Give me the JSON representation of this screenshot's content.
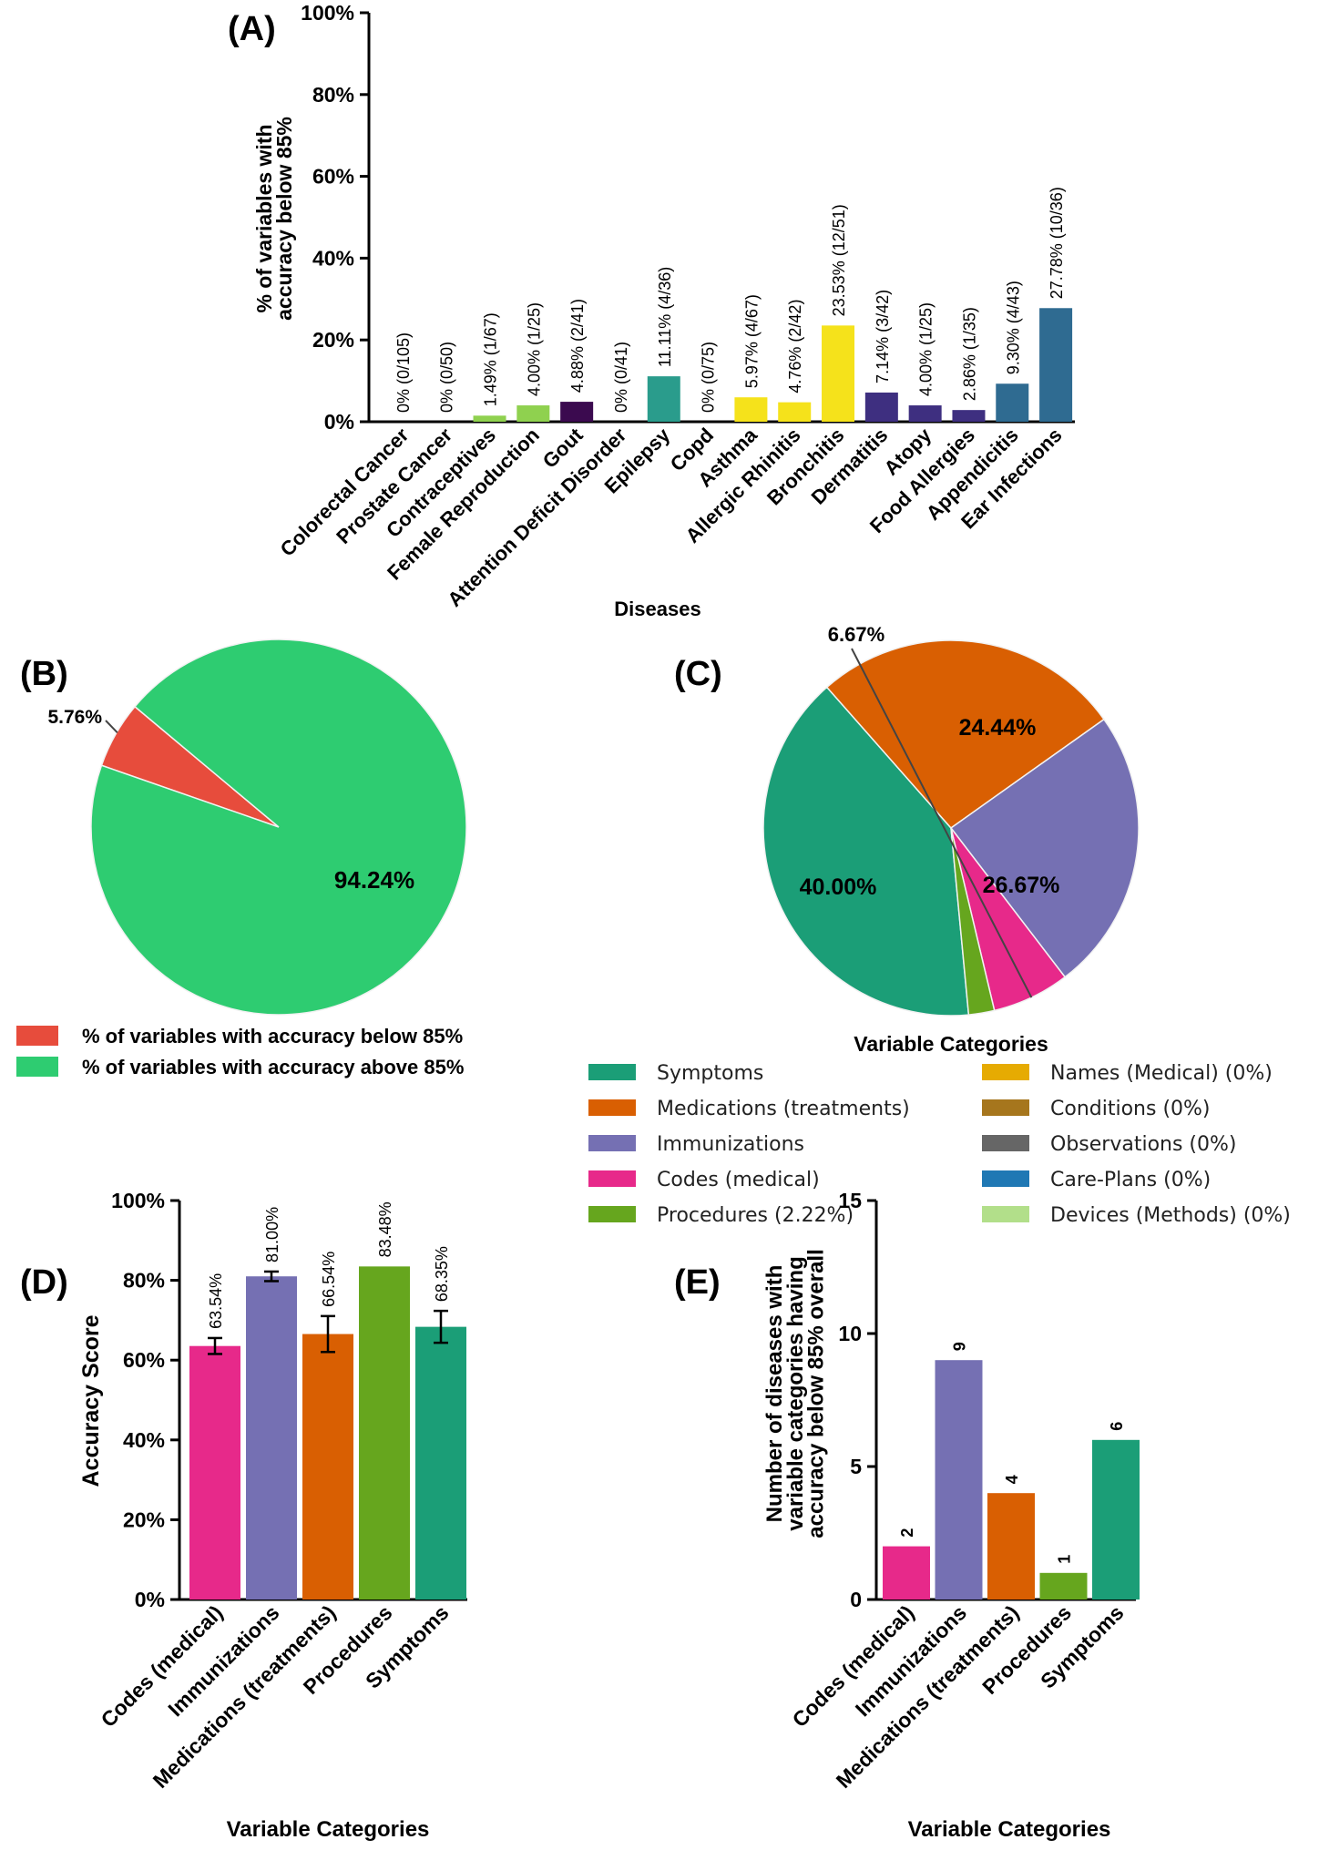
{
  "chart_data": [
    {
      "panel": "(A)",
      "type": "bar",
      "xlabel": "Diseases",
      "ylabel": [
        "% of variables with",
        "accuracy below 85%"
      ],
      "ylim": [
        0,
        100
      ],
      "yticks": [
        "0%",
        "20%",
        "40%",
        "60%",
        "80%",
        "100%"
      ],
      "categories": [
        "Colorectal Cancer",
        "Prostate Cancer",
        "Contraceptives",
        "Female Reproduction",
        "Gout",
        "Attention Deficit Disorder",
        "Epilepsy",
        "Copd",
        "Asthma",
        "Allergic Rhinitis",
        "Bronchitis",
        "Dermatitis",
        "Atopy",
        "Food Allergies",
        "Appendicitis",
        "Ear Infections"
      ],
      "values": [
        0,
        0,
        1.49,
        4.0,
        4.88,
        0,
        11.11,
        0,
        5.97,
        4.76,
        23.53,
        7.14,
        4.0,
        2.86,
        9.3,
        27.78
      ],
      "labels": [
        "0% (0/105)",
        "0% (0/50)",
        "1.49% (1/67)",
        "4.00% (1/25)",
        "4.88% (2/41)",
        "0% (0/41)",
        "11.11% (4/36)",
        "0% (0/75)",
        "5.97% (4/67)",
        "4.76% (2/42)",
        "23.53% (12/51)",
        "7.14% (3/42)",
        "4.00% (1/25)",
        "2.86% (1/35)",
        "9.30% (4/43)",
        "27.78% (10/36)"
      ],
      "colors": [
        "#ffffff",
        "#ffffff",
        "#8fd14f",
        "#8fd14f",
        "#3b0a4f",
        "#ffffff",
        "#2a9c8c",
        "#ffffff",
        "#f5e21b",
        "#f5e21b",
        "#f5e21b",
        "#3e2f80",
        "#3e2f80",
        "#3e2f80",
        "#2f6b91",
        "#2f6b91"
      ]
    },
    {
      "panel": "(B)",
      "type": "pie",
      "slices": [
        {
          "name": "% of variables with accuracy below 85%",
          "value": 5.76,
          "label": "5.76%",
          "color": "#e74c3c"
        },
        {
          "name": "% of variables with accuracy above 85%",
          "value": 94.24,
          "label": "94.24%",
          "color": "#2ecc71"
        }
      ],
      "legend_position": "bottom"
    },
    {
      "panel": "(C)",
      "type": "pie",
      "title": "Variable Categories",
      "slices": [
        {
          "name": "Symptoms",
          "value": 40.0,
          "label": "40.00%",
          "color": "#1b9e77"
        },
        {
          "name": "Medications (treatments)",
          "value": 26.67,
          "label": "26.67%",
          "color": "#d95f02"
        },
        {
          "name": "Immunizations",
          "value": 24.44,
          "label": "24.44%",
          "color": "#7570b3"
        },
        {
          "name": "Codes (medical)",
          "value": 6.67,
          "label": "6.67%",
          "color": "#e7298a"
        },
        {
          "name": "Procedures (2.22%)",
          "value": 2.22,
          "label": "",
          "color": "#66a61e"
        }
      ],
      "legend": [
        {
          "name": "Symptoms",
          "color": "#1b9e77"
        },
        {
          "name": "Medications (treatments)",
          "color": "#d95f02"
        },
        {
          "name": "Immunizations",
          "color": "#7570b3"
        },
        {
          "name": "Codes (medical)",
          "color": "#e7298a"
        },
        {
          "name": "Procedures (2.22%)",
          "color": "#66a61e"
        },
        {
          "name": "Names (Medical) (0%)",
          "color": "#e6ab02"
        },
        {
          "name": "Conditions (0%)",
          "color": "#a6761d"
        },
        {
          "name": "Observations (0%)",
          "color": "#666666"
        },
        {
          "name": "Care-Plans (0%)",
          "color": "#1f78b4"
        },
        {
          "name": "Devices (Methods) (0%)",
          "color": "#b2df8a"
        }
      ]
    },
    {
      "panel": "(D)",
      "type": "bar",
      "xlabel": "Variable Categories",
      "ylabel": "Accuracy Score",
      "ylim": [
        0,
        100
      ],
      "yticks": [
        "0%",
        "20%",
        "40%",
        "60%",
        "80%",
        "100%"
      ],
      "categories": [
        "Codes (medical)",
        "Immunizations",
        "Medications (treatments)",
        "Procedures",
        "Symptoms"
      ],
      "values": [
        63.54,
        81.0,
        66.54,
        83.48,
        68.35
      ],
      "errors": [
        2.0,
        1.2,
        4.5,
        0,
        4.0
      ],
      "labels": [
        "63.54%",
        "81.00%",
        "66.54%",
        "83.48%",
        "68.35%"
      ],
      "colors": [
        "#e7298a",
        "#7570b3",
        "#d95f02",
        "#66a61e",
        "#1b9e77"
      ]
    },
    {
      "panel": "(E)",
      "type": "bar",
      "xlabel": "Variable Categories",
      "ylabel": [
        "Number of diseases with",
        "variable categories having",
        "accuracy below 85% overall"
      ],
      "ylim": [
        0,
        15
      ],
      "yticks": [
        "0",
        "5",
        "10",
        "15"
      ],
      "categories": [
        "Codes (medical)",
        "Immunizations",
        "Medications (treatments)",
        "Procedures",
        "Symptoms"
      ],
      "values": [
        2,
        9,
        4,
        1,
        6
      ],
      "labels": [
        "2",
        "9",
        "4",
        "1",
        "6"
      ],
      "colors": [
        "#e7298a",
        "#7570b3",
        "#d95f02",
        "#66a61e",
        "#1b9e77"
      ]
    }
  ]
}
